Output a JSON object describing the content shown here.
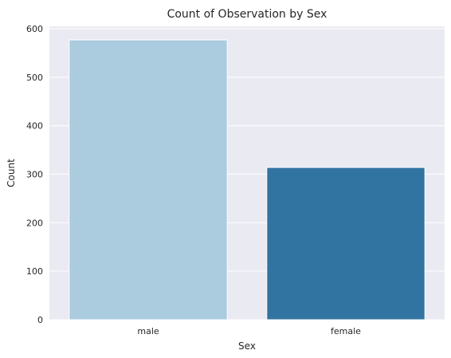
{
  "chart_data": {
    "type": "bar",
    "title": "Count of Observation by Sex",
    "xlabel": "Sex",
    "ylabel": "Count",
    "categories": [
      "male",
      "female"
    ],
    "values": [
      577,
      314
    ],
    "ylim": [
      0,
      605
    ],
    "yticks": [
      0,
      100,
      200,
      300,
      400,
      500,
      600
    ],
    "grid": true,
    "legend": "none",
    "colors": {
      "background": "#eaeaf2",
      "grid": "#ffffff",
      "bars": [
        "#abcbdf",
        "#3274a1"
      ],
      "text": "#262626"
    }
  }
}
